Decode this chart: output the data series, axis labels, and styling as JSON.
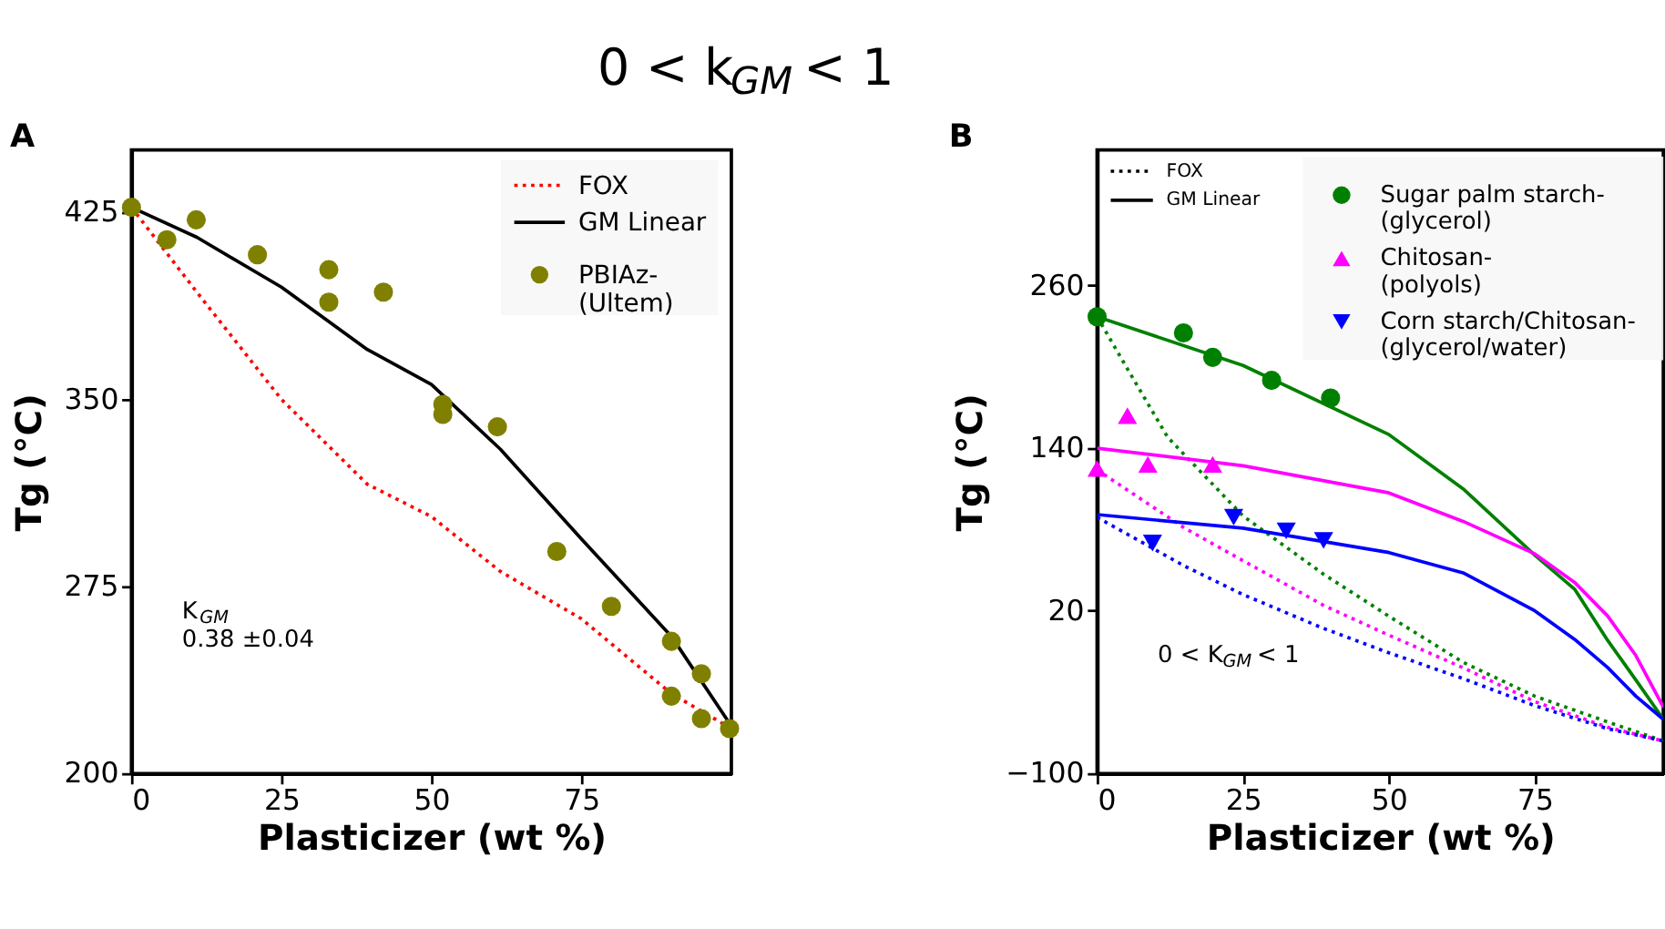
{
  "chart_data": [
    {
      "type": "line",
      "title": "0 < k$_{GM}$ < 1",
      "xlabel": "Plasticizer (wt %)",
      "ylabel": "Tg (°C)",
      "xlim": [
        0,
        100
      ],
      "ylim": [
        200,
        450
      ],
      "xticks": [
        0,
        25,
        50,
        75
      ],
      "yticks": [
        200,
        275,
        350,
        425
      ],
      "grid": false,
      "legend": "top right",
      "annotations": [
        "A",
        "K$_{GM}$\n0.38 ±0.04"
      ],
      "series": [
        {
          "name": "FOX",
          "line_style": "dotted",
          "color": "#ff0000",
          "x": [
            0,
            10.9,
            25,
            39.3,
            50,
            61.5,
            75,
            90,
            100
          ],
          "values": [
            427,
            393,
            350,
            316,
            303,
            281,
            262,
            232,
            218
          ]
        },
        {
          "name": "GM Linear",
          "line_style": "solid",
          "color": "#000000",
          "x": [
            0,
            10.9,
            25,
            39.3,
            50,
            61.5,
            75,
            90,
            100
          ],
          "values": [
            427,
            415,
            395,
            370,
            356,
            330,
            294,
            255,
            219
          ]
        },
        {
          "name": "PBIAz-\n(Ultem)",
          "type": "scatter",
          "marker": "circle",
          "color": "#808000",
          "x": [
            0,
            5.9,
            10.8,
            21,
            32.9,
            32.9,
            42,
            51.9,
            51.9,
            61,
            70.9,
            80,
            90,
            95,
            90,
            95,
            99.7
          ],
          "values": [
            427,
            414,
            422,
            408,
            402,
            389,
            393,
            348,
            344,
            339,
            289,
            267,
            253,
            240,
            231,
            222,
            218
          ]
        }
      ]
    },
    {
      "type": "line",
      "xlabel": "Plasticizer (wt %)",
      "ylabel": "Tg (°C)",
      "xlim": [
        0,
        97
      ],
      "ylim": [
        -100,
        360
      ],
      "xticks": [
        0,
        25,
        50,
        75
      ],
      "yticks": [
        -100,
        20,
        140,
        260
      ],
      "grid": false,
      "legend": "top right",
      "annotations": [
        "B",
        "0 < K$_{GM}$ < 1",
        "FOX",
        "GM Linear"
      ],
      "series": [
        {
          "line_style": "dotted",
          "color": "#008000",
          "x": [
            0,
            5.4,
            12.1,
            25,
            38.8,
            50,
            62.7,
            75,
            87.5,
            97
          ],
          "values": [
            237,
            197,
            148,
            90,
            47,
            16,
            -18,
            -43,
            -62,
            -76
          ]
        },
        {
          "line_style": "dotted",
          "color": "#ff00ff",
          "x": [
            0,
            15,
            25,
            38.8,
            50,
            62.7,
            75,
            87.5,
            97
          ],
          "values": [
            124,
            81,
            57,
            24,
            2,
            -22,
            -47,
            -66,
            -76
          ]
        },
        {
          "line_style": "dotted",
          "color": "#0000ff",
          "x": [
            0,
            15,
            25,
            38.8,
            50,
            62.7,
            75,
            87.5,
            97
          ],
          "values": [
            89,
            53,
            32,
            7,
            -11,
            -30,
            -50,
            -67,
            -76
          ]
        },
        {
          "line_style": "solid",
          "color": "#008000",
          "x": [
            0,
            25,
            50,
            62.7,
            75,
            81.8,
            87.5,
            92.3,
            97
          ],
          "values": [
            237,
            201,
            150,
            110,
            61,
            36,
            -2,
            -31,
            -60
          ]
        },
        {
          "line_style": "solid",
          "color": "#ff00ff",
          "x": [
            0,
            25,
            50,
            62.7,
            75,
            81.8,
            87.5,
            92.3,
            97
          ],
          "values": [
            140,
            127,
            107,
            86,
            62,
            41,
            16,
            -13,
            -51
          ]
        },
        {
          "line_style": "solid",
          "color": "#0000ff",
          "x": [
            0,
            25,
            50,
            62.7,
            75,
            81.8,
            87.5,
            92.3,
            97
          ],
          "values": [
            91,
            81,
            63,
            48,
            20,
            -1,
            -22,
            -43,
            -60
          ]
        },
        {
          "name": "Sugar palm starch-\n(glycerol)",
          "type": "scatter",
          "marker": "circle",
          "color": "#008000",
          "x": [
            0,
            14.8,
            19.8,
            29.9,
            40
          ],
          "values": [
            237,
            225,
            207,
            190,
            177
          ]
        },
        {
          "name": "Chitosan-\n(polyols)",
          "type": "scatter",
          "marker": "triangle",
          "color": "#ff00ff",
          "x": [
            0,
            5.2,
            8.7,
            19.8
          ],
          "values": [
            125,
            164,
            128,
            128
          ]
        },
        {
          "name": "Corn starch/Chitosan-\n(glycerol/water)",
          "type": "scatter",
          "marker": "triangle-down",
          "color": "#0000ff",
          "x": [
            9.5,
            23.4,
            32.4,
            38.8
          ],
          "values": [
            70,
            89,
            79,
            72
          ]
        }
      ]
    }
  ]
}
